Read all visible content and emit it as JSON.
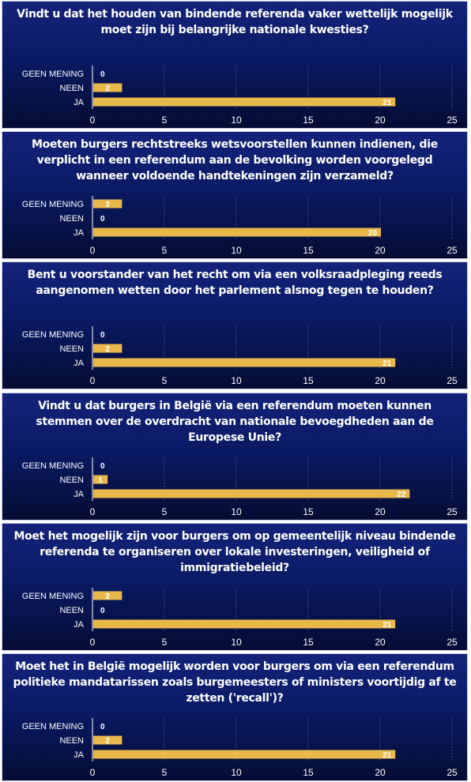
{
  "style": {
    "bar_color": "#e8b84b",
    "grid_color": "#3b4a8a",
    "axis_color": "#ffffff",
    "panel_gradient_top": "#14237a",
    "panel_gradient_bottom": "#050c33"
  },
  "chart_data": [
    {
      "type": "bar",
      "orientation": "horizontal",
      "title": "Vindt u dat het houden van bindende referenda vaker wettelijk mogelijk moet zijn bij belangrijke nationale kwesties?",
      "categories": [
        "GEEN MENING",
        "NEEN",
        "JA"
      ],
      "values": [
        0,
        2,
        21
      ],
      "xlim": [
        0,
        25
      ],
      "xticks": [
        0,
        5,
        10,
        15,
        20,
        25
      ],
      "grid": true
    },
    {
      "type": "bar",
      "orientation": "horizontal",
      "title": "Moeten burgers rechtstreeks wetsvoorstellen kunnen indienen, die verplicht in een referendum aan de bevolking worden voorgelegd wanneer voldoende handtekeningen zijn verzameld?",
      "categories": [
        "GEEN MENING",
        "NEEN",
        "JA"
      ],
      "values": [
        2,
        0,
        20
      ],
      "xlim": [
        0,
        25
      ],
      "xticks": [
        0,
        5,
        10,
        15,
        20,
        25
      ],
      "grid": true
    },
    {
      "type": "bar",
      "orientation": "horizontal",
      "title": "Bent u voorstander van het recht om via een volksraadpleging reeds aangenomen wetten door het parlement alsnog tegen te houden?",
      "categories": [
        "GEEN MENING",
        "NEEN",
        "JA"
      ],
      "values": [
        0,
        2,
        21
      ],
      "xlim": [
        0,
        25
      ],
      "xticks": [
        0,
        5,
        10,
        15,
        20,
        25
      ],
      "grid": true
    },
    {
      "type": "bar",
      "orientation": "horizontal",
      "title": "Vindt u dat burgers in België via een referendum moeten kunnen stemmen over de overdracht van nationale bevoegdheden aan de Europese Unie?",
      "categories": [
        "GEEN MENING",
        "NEEN",
        "JA"
      ],
      "values": [
        0,
        1,
        22
      ],
      "xlim": [
        0,
        25
      ],
      "xticks": [
        0,
        5,
        10,
        15,
        20,
        25
      ],
      "grid": true
    },
    {
      "type": "bar",
      "orientation": "horizontal",
      "title": "Moet het mogelijk zijn voor burgers om op gemeentelijk niveau bindende referenda te organiseren over lokale investeringen, veiligheid of immigratiebeleid?",
      "categories": [
        "GEEN MENING",
        "NEEN",
        "JA"
      ],
      "values": [
        2,
        0,
        21
      ],
      "xlim": [
        0,
        25
      ],
      "xticks": [
        0,
        5,
        10,
        15,
        20,
        25
      ],
      "grid": true
    },
    {
      "type": "bar",
      "orientation": "horizontal",
      "title": "Moet het in België mogelijk worden voor burgers om via een referendum politieke mandatarissen zoals burgemeesters of ministers voortijdig af te zetten ('recall')?",
      "categories": [
        "GEEN MENING",
        "NEEN",
        "JA"
      ],
      "values": [
        0,
        2,
        21
      ],
      "xlim": [
        0,
        25
      ],
      "xticks": [
        0,
        5,
        10,
        15,
        20,
        25
      ],
      "grid": true
    }
  ]
}
